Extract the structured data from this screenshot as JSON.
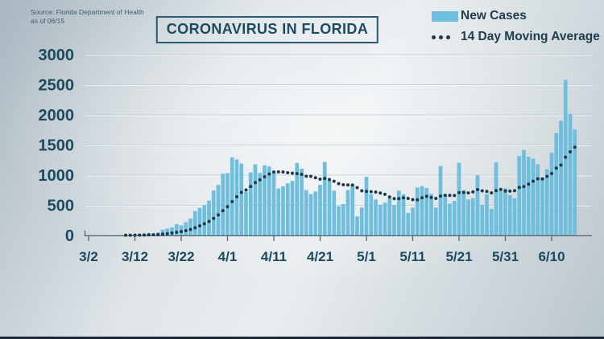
{
  "source": {
    "line1": "Source: Florida Department of Health",
    "line2": "as of 06/15"
  },
  "title": "CORONAVIRUS IN FLORIDA",
  "legend": {
    "bar_label": "New Cases",
    "line_label": "14 Day Moving Average"
  },
  "colors": {
    "bar": "#6fbedd",
    "dot": "#1d3a4c",
    "text": "#1c4a5e",
    "axis": "#57666f",
    "gridline": "#c5ced5",
    "gridline_highlight": "rgba(255,255,255,0.65)",
    "title_border": "#2a5a6d",
    "bottom_strip": "#1b2733"
  },
  "chart_data": {
    "type": "bar",
    "title": "CORONAVIRUS IN FLORIDA",
    "x_range": [
      "3/2",
      "6/15"
    ],
    "x_tick_labels": [
      "3/2",
      "3/12",
      "3/22",
      "4/1",
      "4/11",
      "4/21",
      "5/1",
      "5/11",
      "5/21",
      "5/31",
      "6/10"
    ],
    "x_tick_days": [
      0,
      10,
      20,
      30,
      40,
      50,
      60,
      70,
      80,
      90,
      100
    ],
    "y_ticks": [
      0,
      500,
      1000,
      1500,
      2000,
      2500,
      3000
    ],
    "ylim": [
      0,
      3000
    ],
    "grid": "horizontal",
    "legend_position": "top-right",
    "series": [
      {
        "name": "New Cases",
        "type": "bar",
        "values": [
          2,
          1,
          0,
          2,
          4,
          3,
          2,
          4,
          6,
          8,
          15,
          20,
          26,
          39,
          25,
          46,
          96,
          112,
          131,
          185,
          168,
          219,
          279,
          402,
          458,
          500,
          578,
          746,
          838,
          1023,
          1035,
          1295,
          1260,
          1192,
          722,
          1045,
          1180,
          1035,
          1164,
          1143,
          1043,
          776,
          815,
          864,
          904,
          1202,
          1107,
          751,
          684,
          729,
          840,
          1218,
          907,
          742,
          484,
          520,
          751,
          840,
          316,
          462,
          973,
          684,
          595,
          507,
          542,
          616,
          506,
          742,
          684,
          373,
          462,
          795,
          818,
          787,
          690,
          462,
          1150,
          684,
          527,
          573,
          1204,
          751,
          596,
          616,
          996,
          507,
          684,
          440,
          1212,
          740,
          781,
          667,
          617,
          1317,
          1419,
          1305,
          1270,
          1180,
          966,
          1096,
          1371,
          1698,
          1902,
          2581,
          2016,
          1758
        ]
      },
      {
        "name": "14 Day Moving Average",
        "type": "dotted-line",
        "derived": "trailing 14-day mean of New Cases"
      }
    ]
  }
}
